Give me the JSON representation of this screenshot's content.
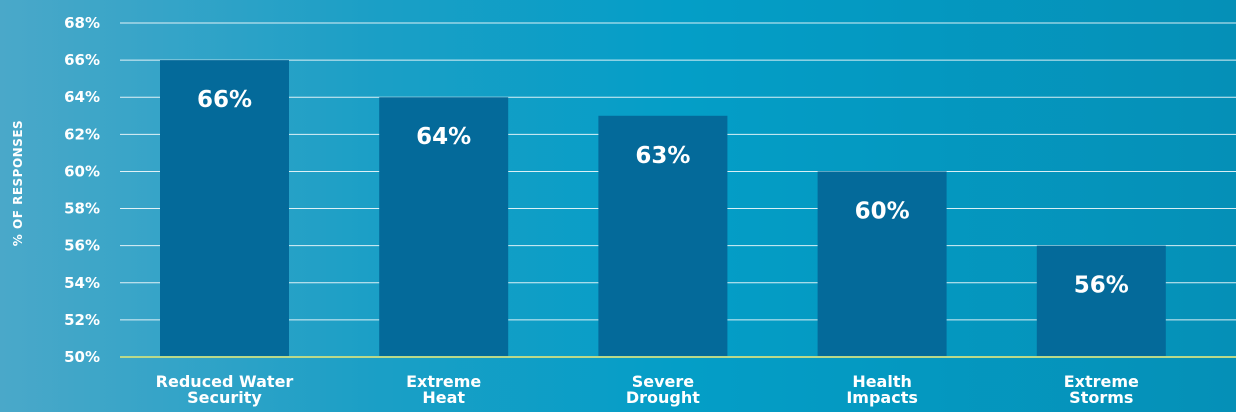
{
  "chart_data": {
    "type": "bar",
    "title": "",
    "xlabel": "",
    "ylabel": "% OF RESPONSES",
    "categories": [
      [
        "Reduced Water",
        "Security"
      ],
      [
        "Extreme",
        "Heat"
      ],
      [
        "Severe",
        "Drought"
      ],
      [
        "Health",
        "Impacts"
      ],
      [
        "Extreme",
        "Storms"
      ]
    ],
    "values": [
      66,
      64,
      63,
      60,
      56
    ],
    "data_labels": [
      "66%",
      "64%",
      "63%",
      "60%",
      "56%"
    ],
    "ylim": [
      50,
      68
    ],
    "yticks": [
      50,
      52,
      54,
      56,
      58,
      60,
      62,
      64,
      66,
      68
    ],
    "ytick_labels": [
      "50%",
      "52%",
      "54%",
      "56%",
      "58%",
      "60%",
      "62%",
      "64%",
      "66%",
      "68%"
    ],
    "grid": true,
    "legend": "none",
    "colors": {
      "bar": "#046a9a",
      "gridline": "#ffffff",
      "baseline": "#b9d98a"
    }
  }
}
